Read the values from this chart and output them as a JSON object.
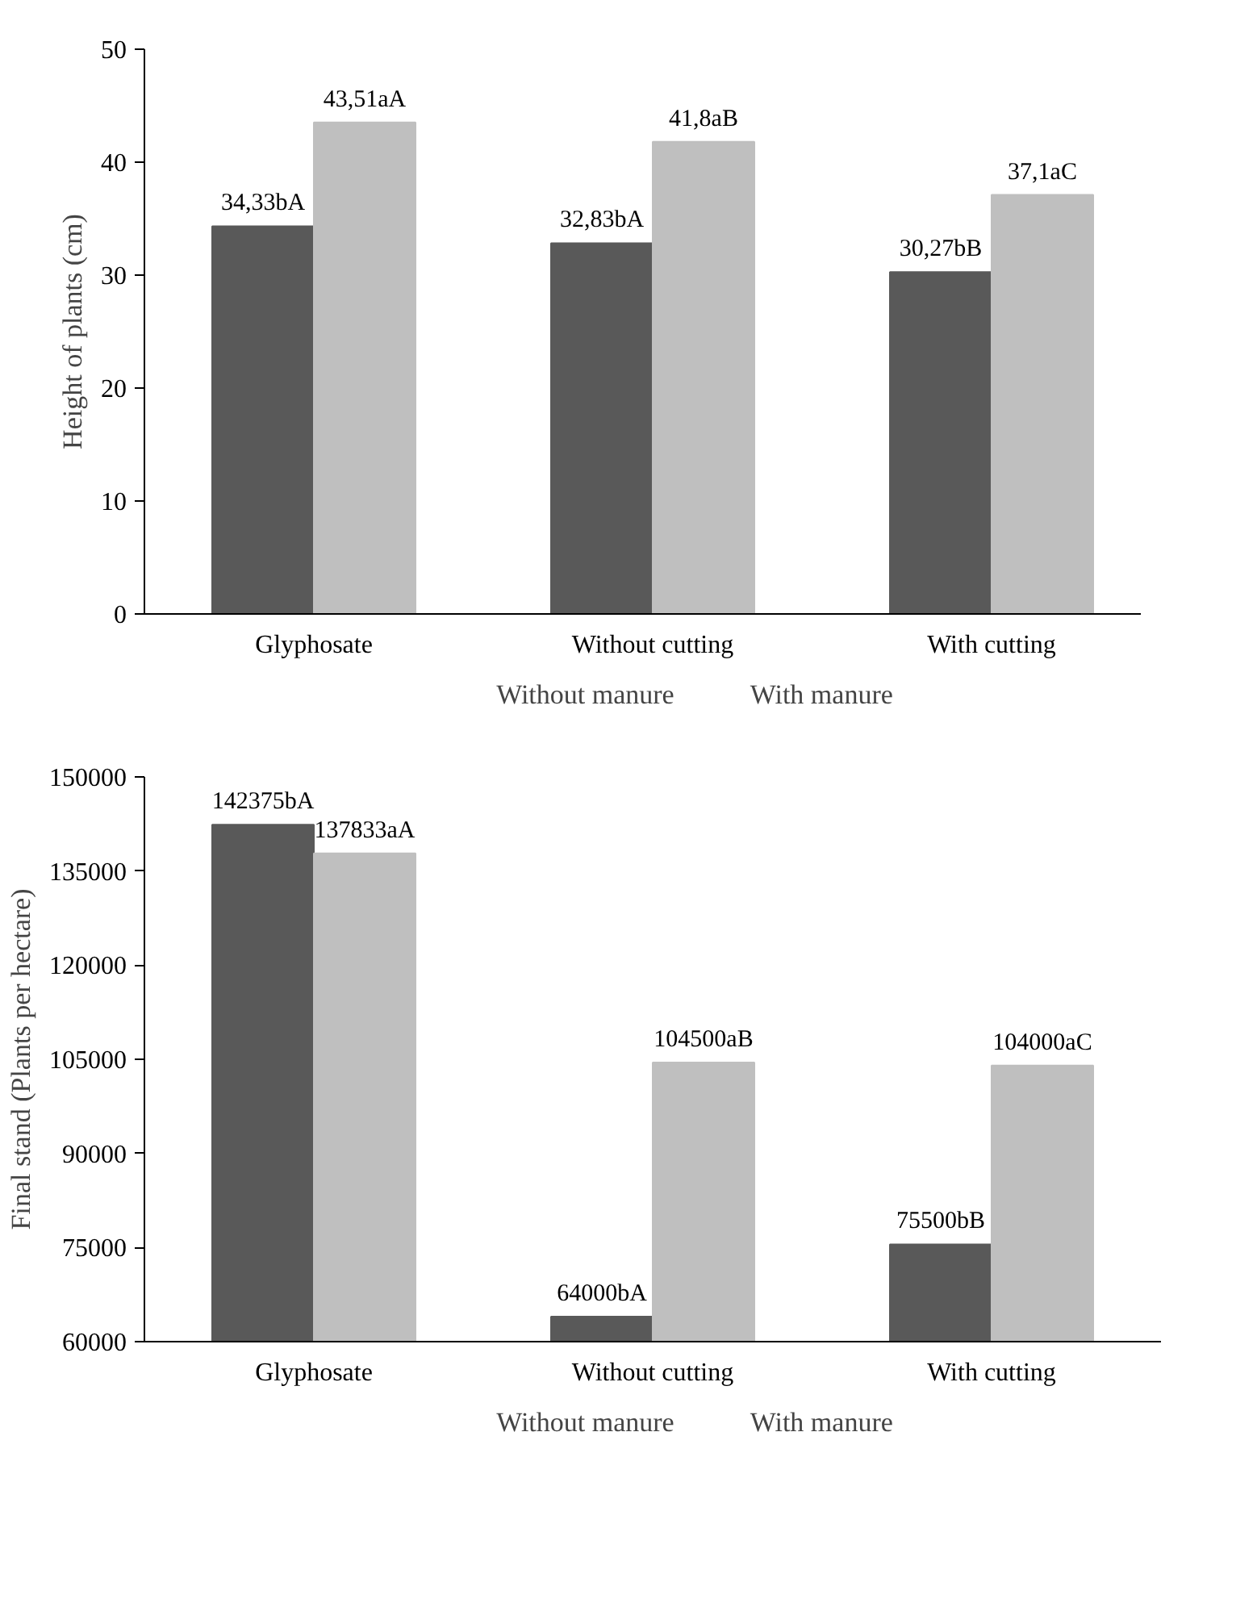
{
  "chart_data": [
    {
      "type": "bar",
      "ylabel": "Height of plants (cm)",
      "categories": [
        "Glyphosate",
        "Without cutting",
        "With cutting"
      ],
      "ylim": [
        0,
        50
      ],
      "yticks": [
        0,
        10,
        20,
        30,
        40,
        50
      ],
      "grid": false,
      "legend": "bottom",
      "series": [
        {
          "name": "Without manure",
          "color": "#595959",
          "values": [
            34.33,
            32.83,
            30.27
          ],
          "value_labels": [
            "34,33bA",
            "32,83bA",
            "30,27bB"
          ]
        },
        {
          "name": "With manure",
          "color": "#bfbfbf",
          "values": [
            43.51,
            41.8,
            37.1
          ],
          "value_labels": [
            "43,51aA",
            "41,8aB",
            "37,1aC"
          ]
        }
      ]
    },
    {
      "type": "bar",
      "ylabel": "Final stand (Plants per hectare)",
      "categories": [
        "Glyphosate",
        "Without cutting",
        "With cutting"
      ],
      "ylim": [
        60000,
        150000
      ],
      "yticks": [
        60000,
        75000,
        90000,
        105000,
        120000,
        135000,
        150000
      ],
      "grid": false,
      "legend": "bottom",
      "series": [
        {
          "name": "Without manure",
          "color": "#595959",
          "values": [
            142375,
            64000,
            75500
          ],
          "value_labels": [
            "142375bA",
            "64000bA",
            "75500bB"
          ]
        },
        {
          "name": "With manure",
          "color": "#bfbfbf",
          "values": [
            137833,
            104500,
            104000
          ],
          "value_labels": [
            "137833aA",
            "104500aB",
            "104000aC"
          ]
        }
      ]
    }
  ]
}
